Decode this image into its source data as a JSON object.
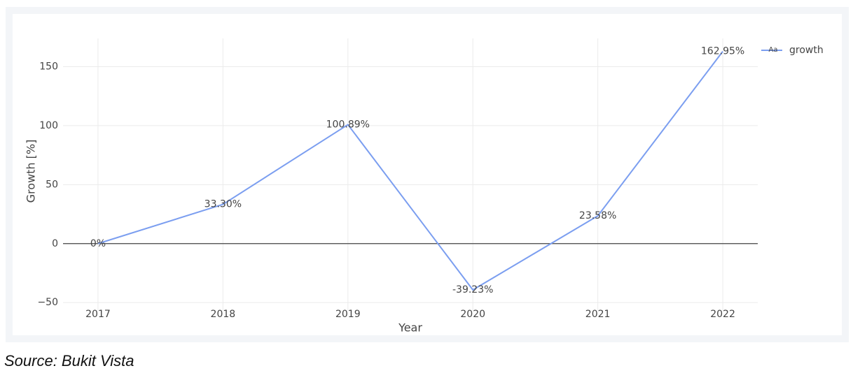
{
  "chart_data": {
    "type": "line",
    "x": [
      2017,
      2018,
      2019,
      2020,
      2021,
      2022
    ],
    "series": [
      {
        "name": "growth",
        "color": "#7b9ef0",
        "values": [
          0,
          33.3,
          100.89,
          -39.23,
          23.58,
          162.95
        ],
        "value_labels": [
          "0%",
          "33.30%",
          "100.89%",
          "-39.23%",
          "23.58%",
          "162.95%"
        ]
      }
    ],
    "xlim": [
      2016.72,
      2022.28
    ],
    "xticks": [
      2017,
      2018,
      2019,
      2020,
      2021,
      2022
    ],
    "ylim": [
      -57,
      174
    ],
    "yticks": [
      {
        "value": -50,
        "label": "−50"
      },
      0,
      50,
      100,
      150
    ],
    "x_label": "Year",
    "y_label": "Growth [%]",
    "grid": true,
    "zero_line": true,
    "legend": "top-right",
    "legend_symbol": "Aa"
  },
  "source": "Source: Bukit Vista"
}
